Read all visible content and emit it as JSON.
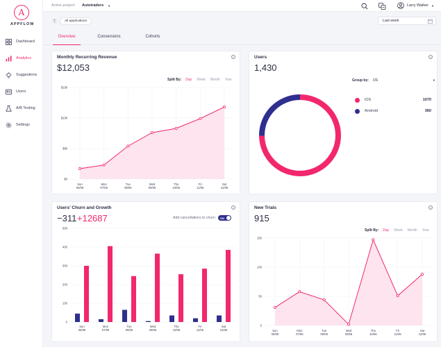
{
  "brand": {
    "name": "APPFLOW",
    "mark": "A",
    "color": "#f2276d"
  },
  "sidebar": {
    "items": [
      {
        "label": "Dashboard",
        "icon": "dashboard-icon"
      },
      {
        "label": "Analytics",
        "icon": "analytics-icon",
        "active": true
      },
      {
        "label": "Suggestions",
        "icon": "lightbulb-icon"
      },
      {
        "label": "Users",
        "icon": "users-icon"
      },
      {
        "label": "A/B Testing",
        "icon": "flask-icon"
      },
      {
        "label": "Settings",
        "icon": "gear-icon"
      }
    ]
  },
  "topbar": {
    "project_label": "Active project:",
    "project_value": "Autotraders",
    "user_name": "Larry Walker"
  },
  "filters": {
    "applications": "All applications",
    "date_range": "Last week"
  },
  "tabs": [
    {
      "label": "Overview",
      "active": true
    },
    {
      "label": "Conversions"
    },
    {
      "label": "Cohorts"
    }
  ],
  "mrr": {
    "title": "Monthly Recurring Revenue",
    "value": "$12,053",
    "split_label": "Split By:",
    "split_options": [
      "Day",
      "Week",
      "Month",
      "Year"
    ]
  },
  "users": {
    "title": "Users",
    "value": "1,430",
    "group_label": "Group by:",
    "group_value": "OS"
  },
  "churn": {
    "title": "Users' Churn and Growth",
    "negative": "−311",
    "positive": "+12687",
    "toggle_label": "Add cancellations to churn",
    "toggle_state": "ON"
  },
  "trials": {
    "title": "New Trials",
    "value": "915",
    "split_label": "Split By:",
    "split_options": [
      "Day",
      "Week",
      "Month",
      "Year"
    ]
  },
  "colors": {
    "pink": "#f2276d",
    "navy": "#2e2f8f",
    "fill": "#fde4ee"
  },
  "chart_data": [
    {
      "type": "area",
      "title": "Monthly Recurring Revenue",
      "categories": [
        [
          "Sun",
          "05/06"
        ],
        [
          "Mon",
          "07/06"
        ],
        [
          "Tue",
          "08/06"
        ],
        [
          "Wed",
          "09/06"
        ],
        [
          "Thu",
          "10/06"
        ],
        [
          "Fri",
          "11/06"
        ],
        [
          "Sat",
          "12/06"
        ]
      ],
      "values": [
        1700,
        2300,
        5400,
        7600,
        8300,
        9900,
        11800
      ],
      "yticks": [
        "$0",
        "$5k",
        "$10k",
        "$15k"
      ],
      "ylim": [
        0,
        15000
      ],
      "grid": true
    },
    {
      "type": "pie",
      "title": "Users",
      "series": [
        {
          "name": "iOS",
          "value": 1070,
          "color": "#f2276d"
        },
        {
          "name": "Android",
          "value": 360,
          "color": "#2e2f8f"
        }
      ]
    },
    {
      "type": "bar",
      "title": "Users' Churn and Growth",
      "categories": [
        [
          "Sun",
          "05/06"
        ],
        [
          "Mon",
          "07/06"
        ],
        [
          "Tue",
          "08/06"
        ],
        [
          "Wed",
          "09/06"
        ],
        [
          "Thu",
          "10/06"
        ],
        [
          "Fri",
          "11/06"
        ],
        [
          "Sat",
          "12/06"
        ]
      ],
      "series": [
        {
          "values": [
            45,
            15,
            65,
            5,
            35,
            20,
            35
          ],
          "color": "#2e2f8f"
        },
        {
          "values": [
            300,
            405,
            245,
            365,
            255,
            285,
            385
          ],
          "color": "#f2276d"
        }
      ],
      "yticks": [
        "0",
        "100",
        "200",
        "300",
        "400",
        "500"
      ],
      "ylim": [
        0,
        500
      ],
      "grid": true
    },
    {
      "type": "area",
      "title": "New Trials",
      "categories": [
        [
          "Sun",
          "05/06"
        ],
        [
          "Mon",
          "07/06"
        ],
        [
          "Tue",
          "08/06"
        ],
        [
          "Wed",
          "09/06"
        ],
        [
          "Thu",
          "10/06"
        ],
        [
          "Fri",
          "11/06"
        ],
        [
          "Sat",
          "12/06"
        ]
      ],
      "values": [
        31,
        58,
        44,
        2,
        147,
        51,
        88
      ],
      "yticks": [
        "0",
        "50",
        "100",
        "150"
      ],
      "ylim": [
        0,
        150
      ],
      "grid": true
    }
  ]
}
